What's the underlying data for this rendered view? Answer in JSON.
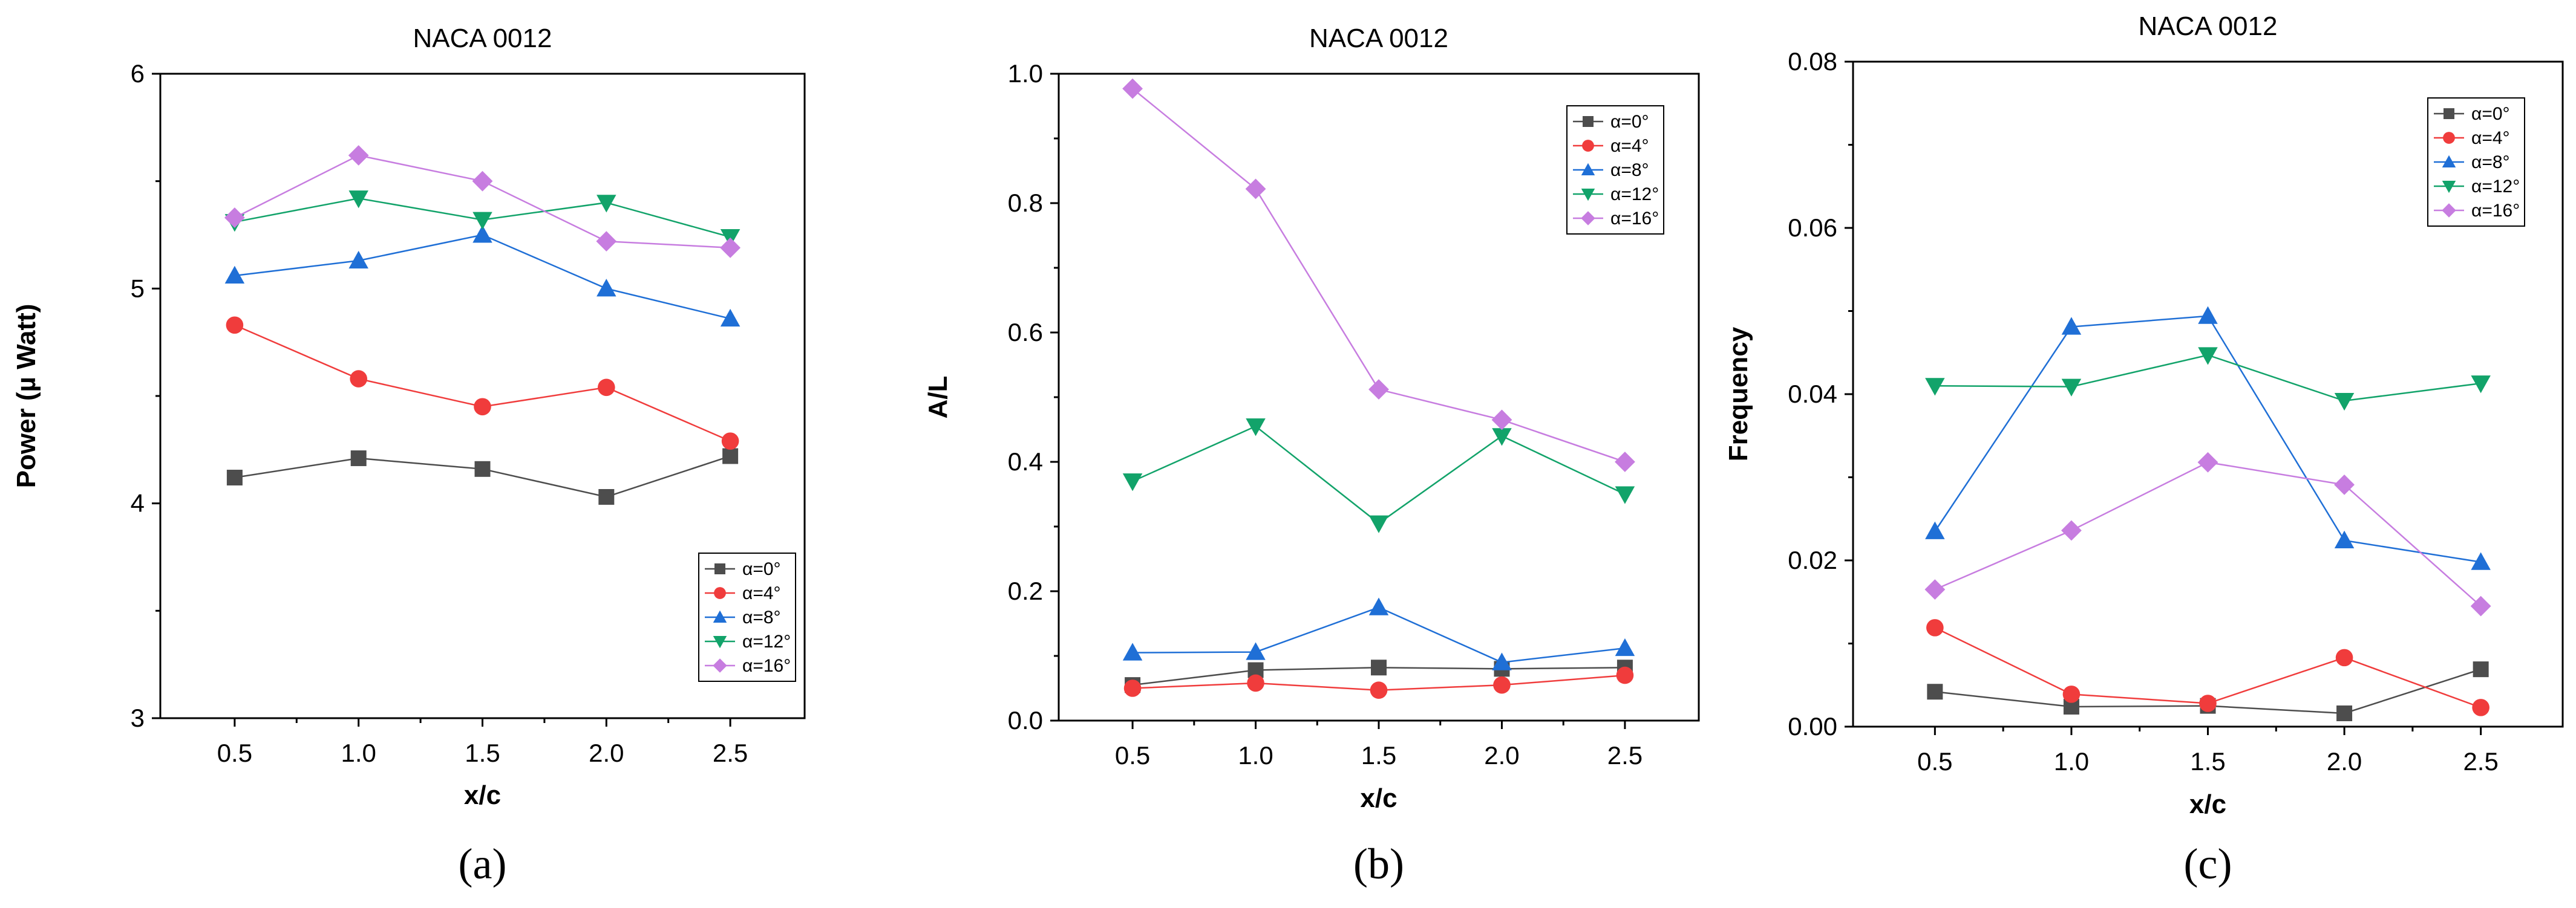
{
  "chart_data": [
    {
      "type": "line",
      "panel": "(a)",
      "title": "NACA 0012",
      "xlabel": "x/c",
      "ylabel": "Power (µ Watt)",
      "x": [
        0.5,
        1.0,
        1.5,
        2.0,
        2.5
      ],
      "xticks": [
        "0.5",
        "1.0",
        "1.5",
        "2.0",
        "2.5"
      ],
      "xlim": [
        0.2,
        2.8
      ],
      "ylim": [
        3,
        6
      ],
      "yticks": [
        3,
        4,
        5,
        6
      ],
      "ytick_labels": [
        "3",
        "4",
        "5",
        "6"
      ],
      "legend_position": "bottom-right",
      "series": [
        {
          "name": "α=0°",
          "color": "#4d4d4d",
          "marker": "square",
          "values": [
            4.12,
            4.21,
            4.16,
            4.03,
            4.22
          ]
        },
        {
          "name": "α=4°",
          "color": "#f03c3c",
          "marker": "circle",
          "values": [
            4.83,
            4.58,
            4.45,
            4.54,
            4.29
          ]
        },
        {
          "name": "α=8°",
          "color": "#1f6fd6",
          "marker": "triangle-up",
          "values": [
            5.06,
            5.13,
            5.25,
            5.0,
            4.86
          ]
        },
        {
          "name": "α=12°",
          "color": "#12a36a",
          "marker": "triangle-down",
          "values": [
            5.31,
            5.42,
            5.32,
            5.4,
            5.24
          ]
        },
        {
          "name": "α=16°",
          "color": "#c77de0",
          "marker": "diamond",
          "values": [
            5.33,
            5.62,
            5.5,
            5.22,
            5.19
          ]
        }
      ]
    },
    {
      "type": "line",
      "panel": "(b)",
      "title": "NACA 0012",
      "xlabel": "x/c",
      "ylabel": "A/L",
      "x": [
        0.5,
        1.0,
        1.5,
        2.0,
        2.5
      ],
      "xticks": [
        "0.5",
        "1.0",
        "1.5",
        "2.0",
        "2.5"
      ],
      "xlim": [
        0.2,
        2.8
      ],
      "ylim": [
        0,
        1.0
      ],
      "yticks": [
        0,
        0.2,
        0.4,
        0.6,
        0.8,
        1.0
      ],
      "ytick_labels": [
        "0.0",
        "0.2",
        "0.4",
        "0.6",
        "0.8",
        "1.0"
      ],
      "legend_position": "top-right",
      "series": [
        {
          "name": "α=0°",
          "color": "#4d4d4d",
          "marker": "square",
          "values": [
            0.055,
            0.078,
            0.082,
            0.08,
            0.082
          ]
        },
        {
          "name": "α=4°",
          "color": "#f03c3c",
          "marker": "circle",
          "values": [
            0.05,
            0.058,
            0.047,
            0.055,
            0.07
          ]
        },
        {
          "name": "α=8°",
          "color": "#1f6fd6",
          "marker": "triangle-up",
          "values": [
            0.105,
            0.106,
            0.175,
            0.09,
            0.112
          ]
        },
        {
          "name": "α=12°",
          "color": "#12a36a",
          "marker": "triangle-down",
          "values": [
            0.37,
            0.455,
            0.305,
            0.44,
            0.35
          ]
        },
        {
          "name": "α=16°",
          "color": "#c77de0",
          "marker": "diamond",
          "values": [
            0.977,
            0.822,
            0.512,
            0.465,
            0.4
          ]
        }
      ]
    },
    {
      "type": "line",
      "panel": "(c)",
      "title": "NACA 0012",
      "xlabel": "x/c",
      "ylabel": "Frequency",
      "x": [
        0.5,
        1.0,
        1.5,
        2.0,
        2.5
      ],
      "xticks": [
        "0.5",
        "1.0",
        "1.5",
        "2.0",
        "2.5"
      ],
      "xlim": [
        0.2,
        2.8
      ],
      "ylim": [
        0,
        0.08
      ],
      "yticks": [
        0,
        0.02,
        0.04,
        0.06,
        0.08
      ],
      "ytick_labels": [
        "0.00",
        "0.02",
        "0.04",
        "0.06",
        "0.08"
      ],
      "legend_position": "top-right",
      "series": [
        {
          "name": "α=0°",
          "color": "#4d4d4d",
          "marker": "square",
          "values": [
            0.0042,
            0.0024,
            0.0025,
            0.0016,
            0.0069
          ]
        },
        {
          "name": "α=4°",
          "color": "#f03c3c",
          "marker": "circle",
          "values": [
            0.0119,
            0.0039,
            0.0028,
            0.0083,
            0.0023
          ]
        },
        {
          "name": "α=8°",
          "color": "#1f6fd6",
          "marker": "triangle-up",
          "values": [
            0.0235,
            0.0481,
            0.0494,
            0.0224,
            0.0198
          ]
        },
        {
          "name": "α=12°",
          "color": "#12a36a",
          "marker": "triangle-down",
          "values": [
            0.041,
            0.0409,
            0.0447,
            0.0392,
            0.0413
          ]
        },
        {
          "name": "α=16°",
          "color": "#c77de0",
          "marker": "diamond",
          "values": [
            0.0165,
            0.0236,
            0.0318,
            0.0291,
            0.0145
          ]
        }
      ]
    }
  ]
}
